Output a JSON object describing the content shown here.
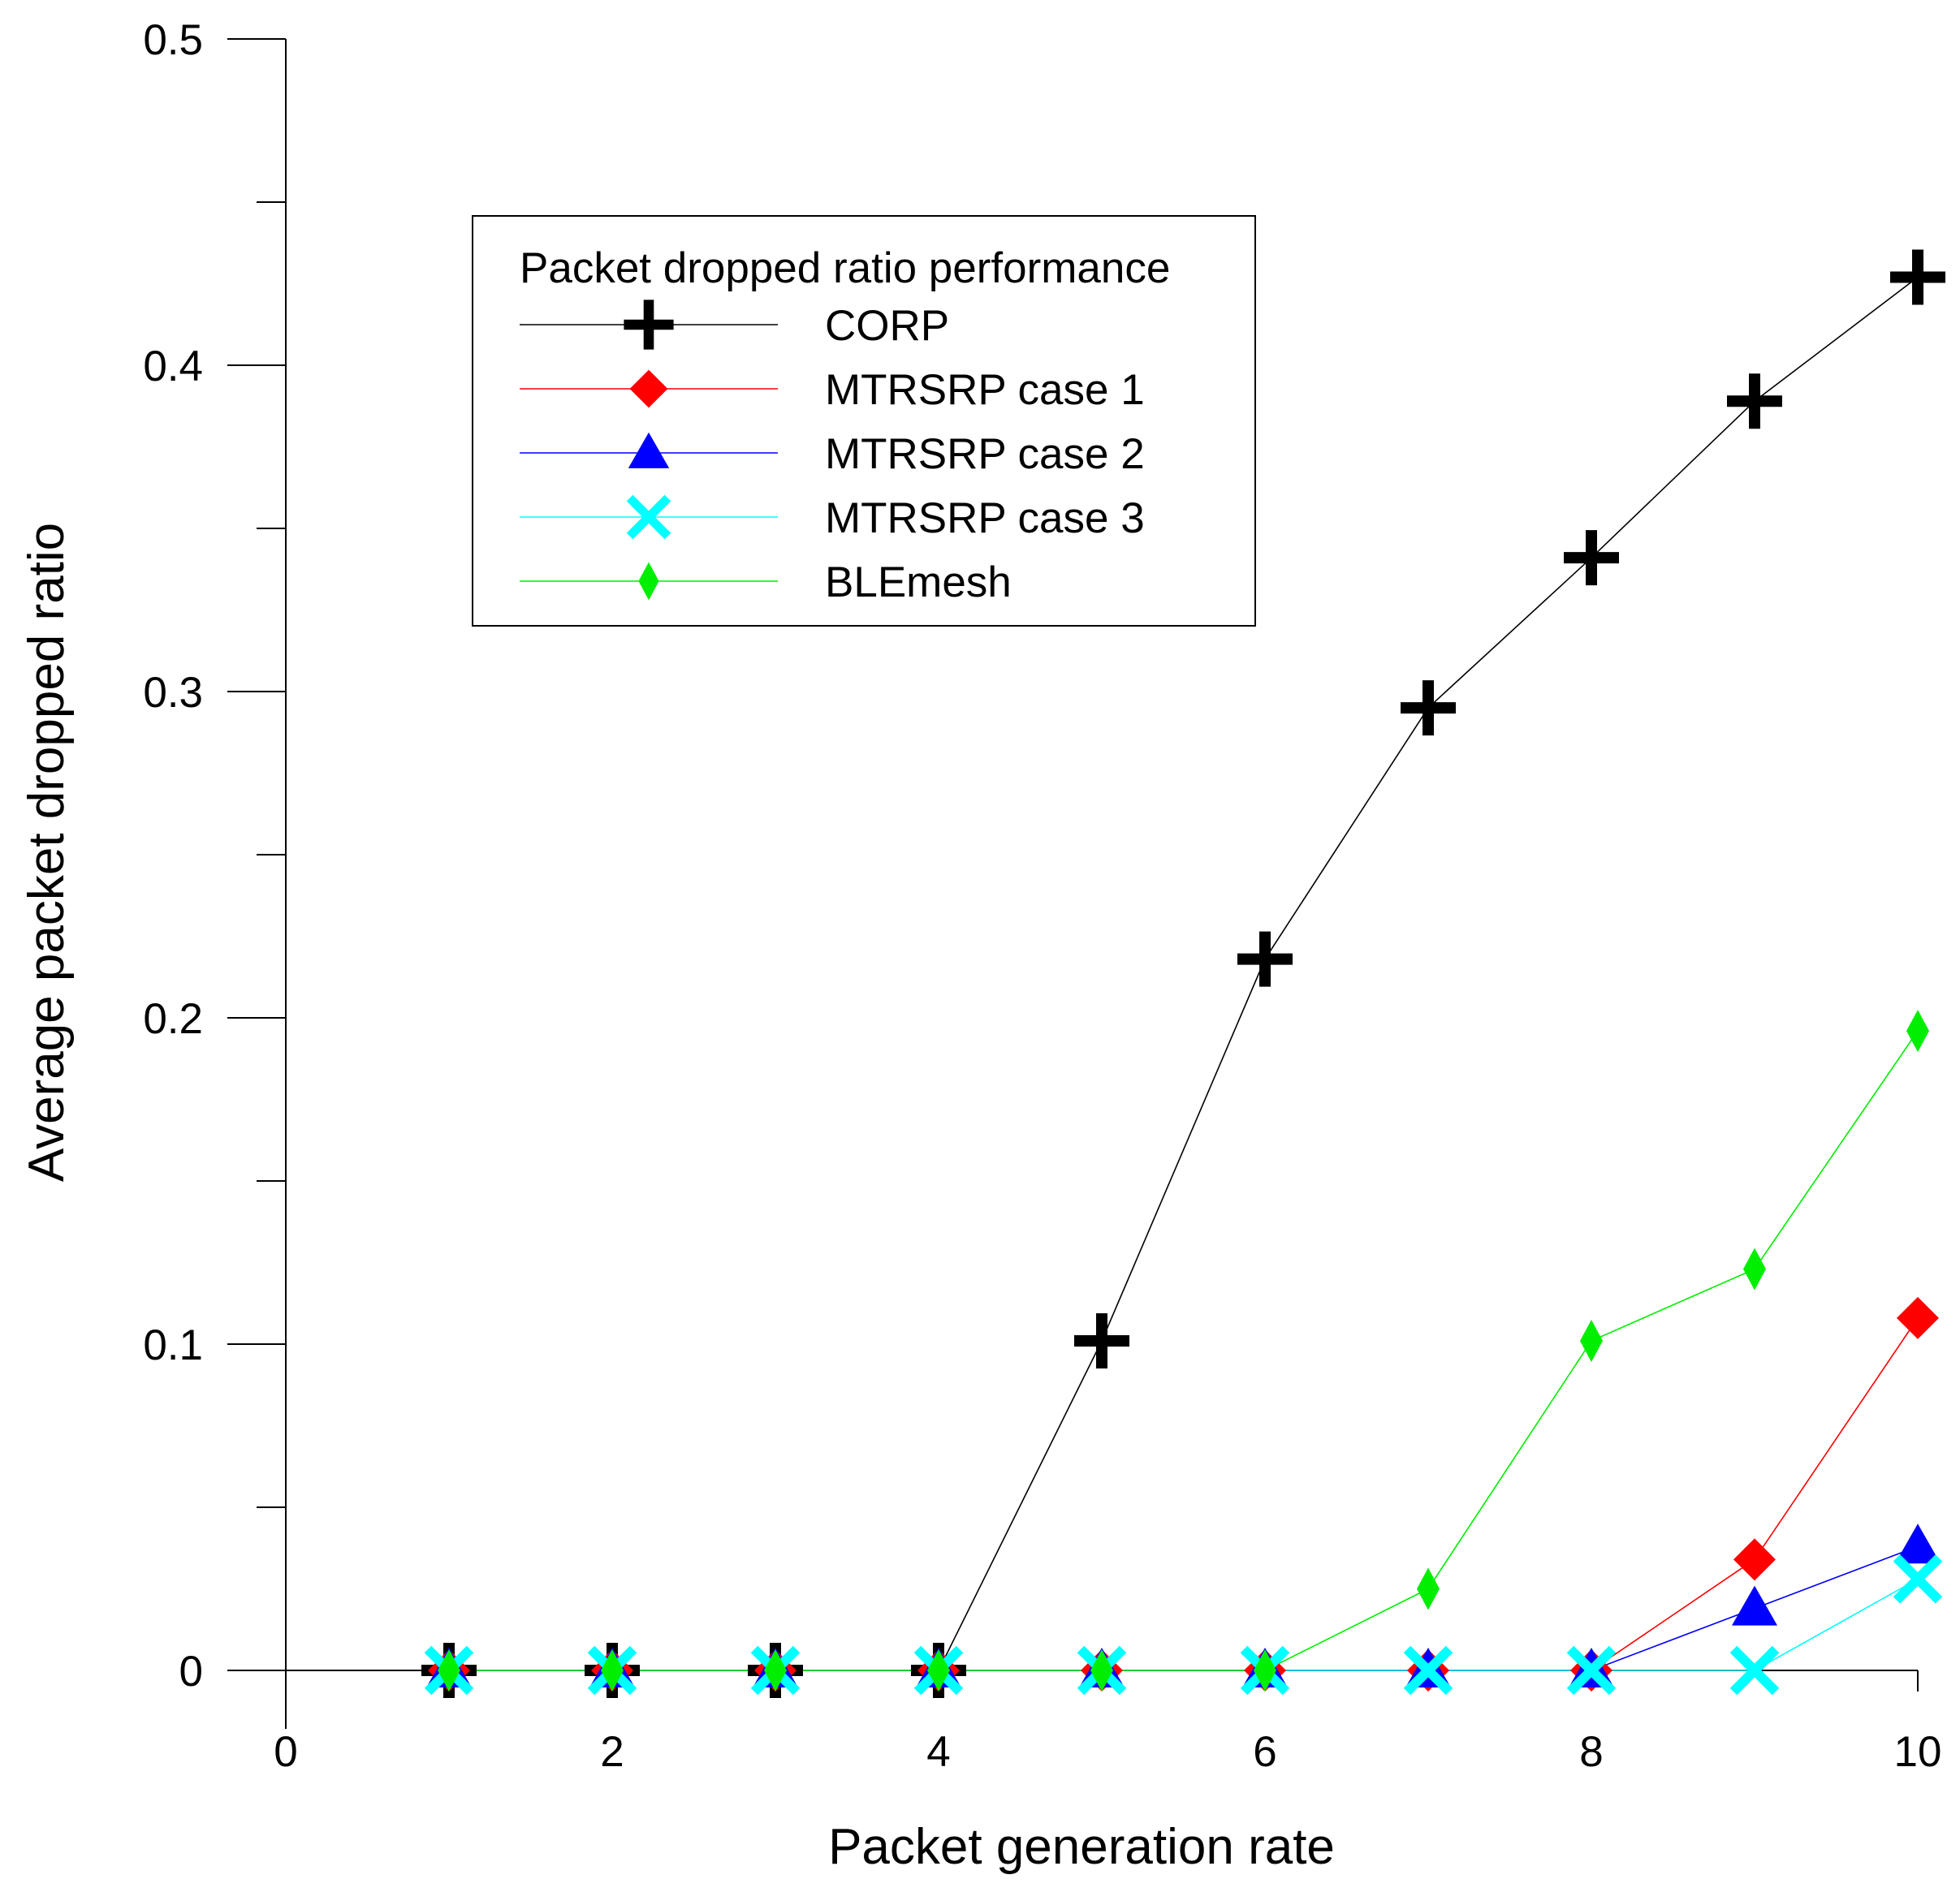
{
  "chart_data": {
    "type": "line",
    "title": "",
    "xlabel": "Packet generation rate",
    "ylabel": "Average packet dropped ratio",
    "xlim": [
      0,
      10
    ],
    "ylim": [
      0,
      0.5
    ],
    "x_ticks": [
      0,
      2,
      4,
      6,
      8,
      10
    ],
    "x_tick_labels": [
      "0",
      "2",
      "4",
      "6",
      "8",
      "10"
    ],
    "y_ticks": [
      0,
      0.1,
      0.2,
      0.3,
      0.4,
      0.5
    ],
    "y_tick_labels": [
      "0",
      "0.1",
      "0.2",
      "0.3",
      "0.4",
      "0.5"
    ],
    "y_minor_ticks": [
      0.05,
      0.15,
      0.25,
      0.35,
      0.45
    ],
    "grid": false,
    "legend": {
      "title": "Packet dropped ratio performance",
      "placement": "upper-left-center"
    },
    "x": [
      1,
      2,
      3,
      4,
      5,
      6,
      7,
      8,
      9,
      10
    ],
    "series": [
      {
        "name": "CORP",
        "color": "#000000",
        "marker": "plus",
        "values": [
          0,
          0,
          0,
          0,
          0.101,
          0.218,
          0.295,
          0.341,
          0.389,
          0.427
        ]
      },
      {
        "name": "MTRSRP case 1",
        "color": "#ff0000",
        "marker": "diamond",
        "values": [
          0,
          0,
          0,
          0,
          0,
          0,
          0,
          0,
          0.034,
          0.108
        ]
      },
      {
        "name": "MTRSRP case 2",
        "color": "#0000ff",
        "marker": "triangle",
        "values": [
          0,
          0,
          0,
          0,
          0,
          0,
          0,
          0,
          0.019,
          0.038
        ]
      },
      {
        "name": "MTRSRP case 3",
        "color": "#00ffff",
        "marker": "x",
        "values": [
          0,
          0,
          0,
          0,
          0,
          0,
          0,
          0,
          0,
          0.028
        ]
      },
      {
        "name": "BLEmesh",
        "color": "#00ee00",
        "marker": "thin-diamond",
        "values": [
          0,
          0,
          0,
          0,
          0,
          0,
          0.025,
          0.101,
          0.123,
          0.196
        ]
      }
    ]
  }
}
